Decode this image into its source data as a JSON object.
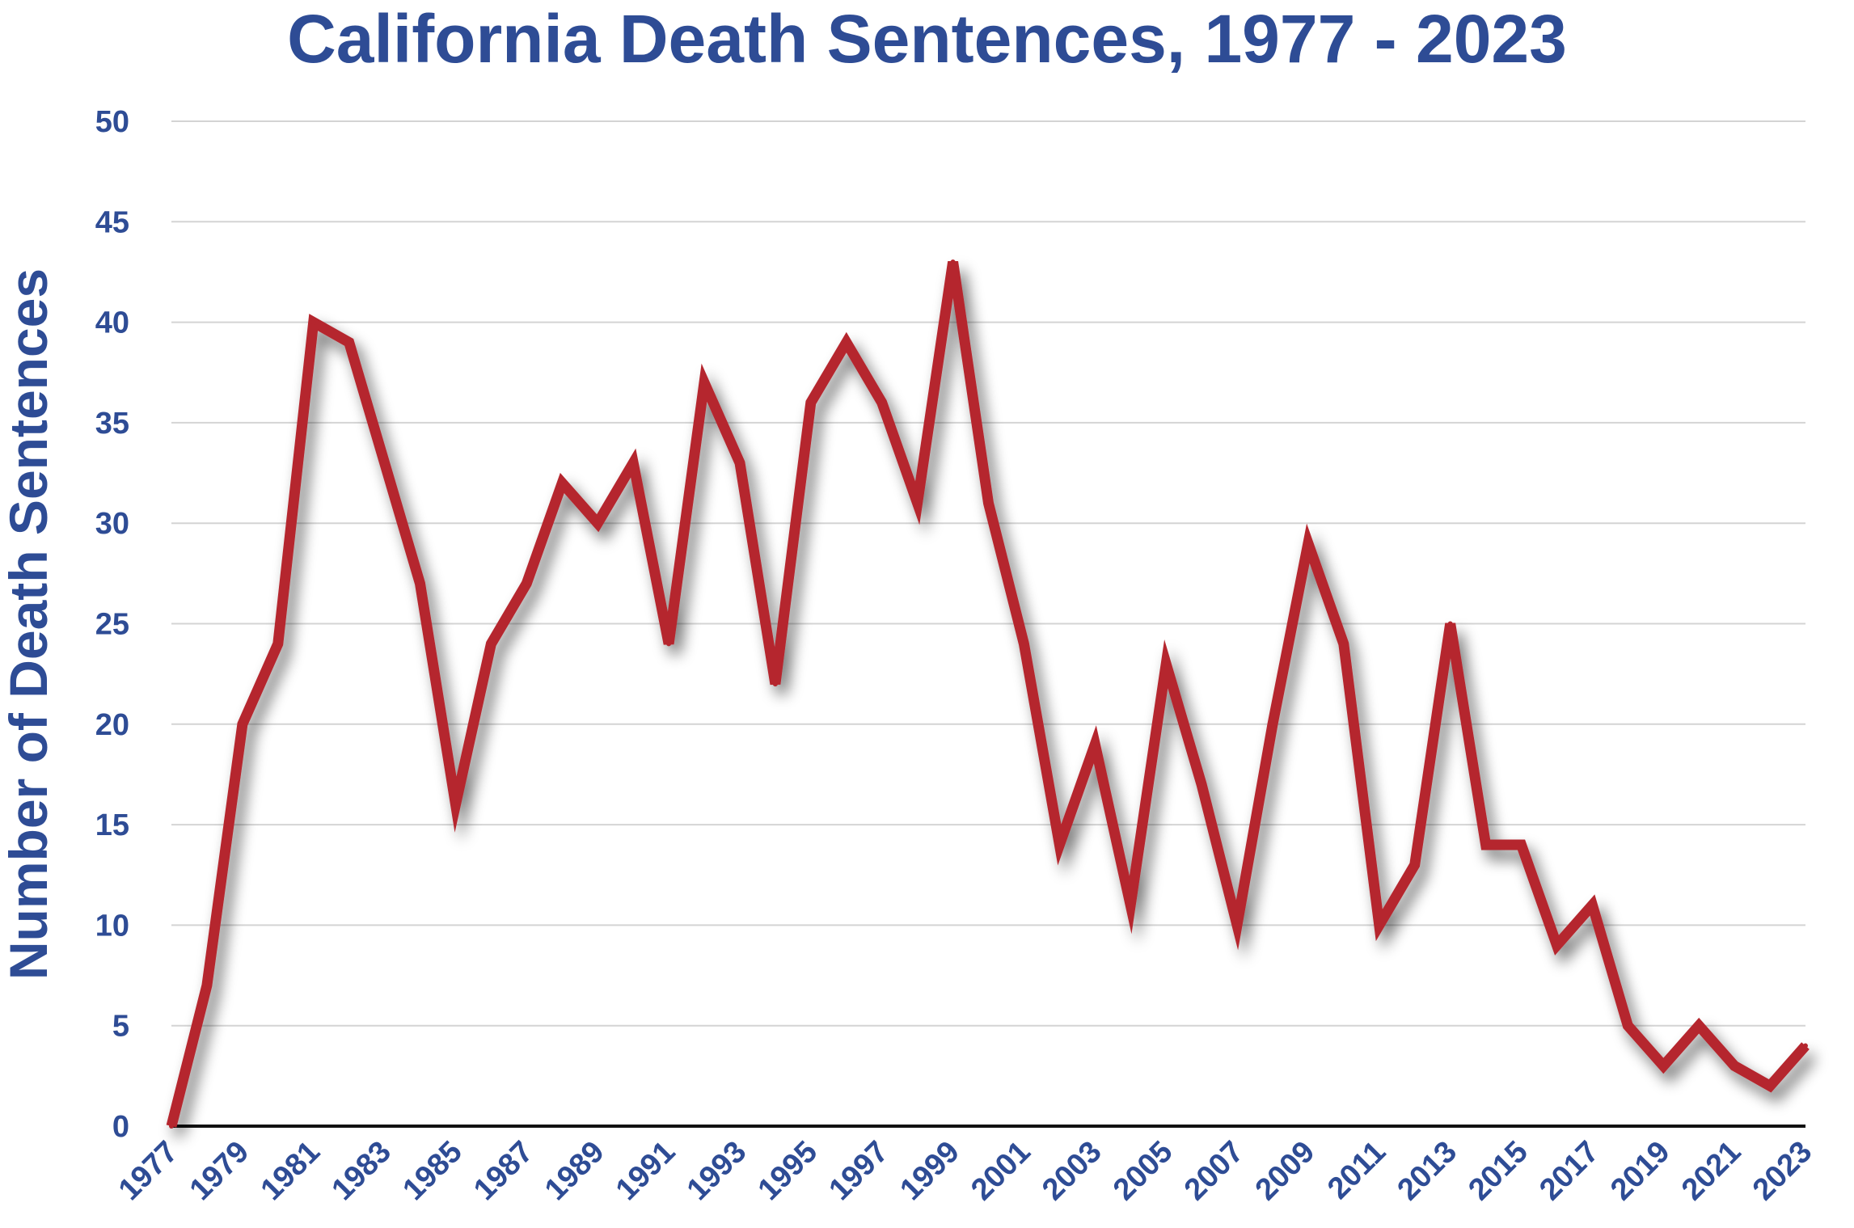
{
  "chart_data": {
    "type": "line",
    "title": "California Death Sentences, 1977 - 2023",
    "xlabel": "",
    "ylabel": "Number of Death Sentences",
    "ylim": [
      0,
      50
    ],
    "yticks": [
      0,
      5,
      10,
      15,
      20,
      25,
      30,
      35,
      40,
      45,
      50
    ],
    "grid": true,
    "legend": "none",
    "x_tick_labels": [
      "1977",
      "1979",
      "1981",
      "1983",
      "1985",
      "1987",
      "1989",
      "1991",
      "1993",
      "1995",
      "1997",
      "1999",
      "2001",
      "2003",
      "2005",
      "2007",
      "2009",
      "2011",
      "2013",
      "2015",
      "2017",
      "2019",
      "2021",
      "2023"
    ],
    "x": [
      1977,
      1978,
      1979,
      1980,
      1981,
      1982,
      1983,
      1984,
      1985,
      1986,
      1987,
      1988,
      1989,
      1990,
      1991,
      1992,
      1993,
      1994,
      1995,
      1996,
      1997,
      1998,
      1999,
      2000,
      2001,
      2002,
      2003,
      2004,
      2005,
      2006,
      2007,
      2008,
      2009,
      2010,
      2011,
      2012,
      2013,
      2014,
      2015,
      2016,
      2017,
      2018,
      2019,
      2020,
      2021,
      2022,
      2023
    ],
    "series": [
      {
        "color": "#b5262e",
        "values": [
          0,
          7,
          20,
          24,
          40,
          39,
          33,
          27,
          16,
          24,
          27,
          32,
          30,
          33,
          24,
          37,
          33,
          22,
          36,
          39,
          36,
          31,
          43,
          31,
          24,
          14,
          19,
          11,
          23,
          17,
          10,
          20,
          29,
          24,
          10,
          13,
          25,
          14,
          14,
          9,
          11,
          5,
          3,
          5,
          3,
          2,
          4
        ]
      }
    ],
    "colors": {
      "text": "#2e4c95",
      "line": "#b5262e",
      "grid": "#d4d4d4",
      "axis": "#111111"
    }
  }
}
